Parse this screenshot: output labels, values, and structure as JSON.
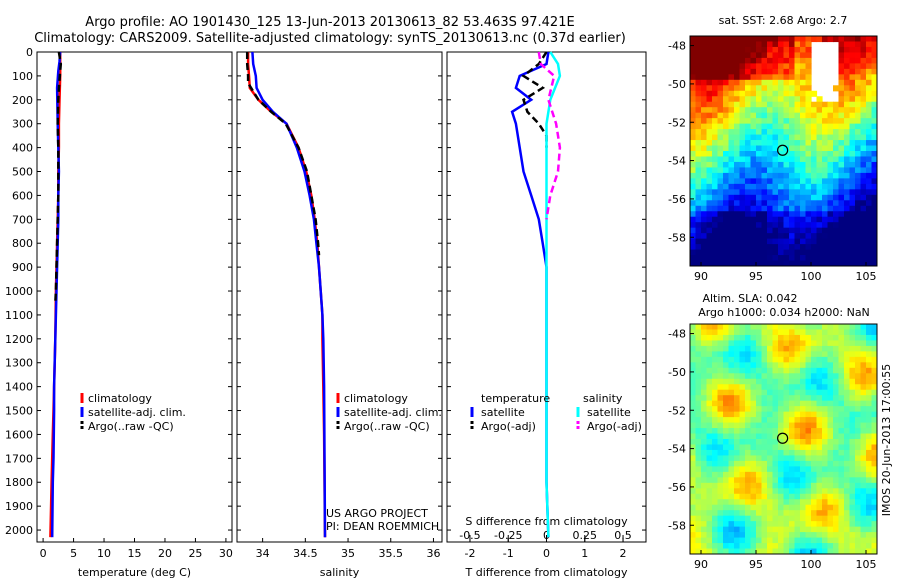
{
  "title": {
    "line1": "Argo profile: AO 1901430_125 13-Jun-2013 20130613_82 53.463S 97.421E",
    "line2": "Climatology: CARS2009. Satellite-adjusted climatology: synTS_20130613.nc (0.37d earlier)"
  },
  "credits": {
    "project": "US ARGO PROJECT",
    "pi": "PI: DEAN ROEMMICH",
    "watermark": "IMOS 20-Jun-2013 17:00:55"
  },
  "colors": {
    "climatology": "#ff0000",
    "satellite": "#0000ff",
    "argo": "#000000",
    "salinity_satellite": "#00ffff",
    "salinity_argo": "#ff00ff"
  },
  "chart_data": [
    {
      "type": "line",
      "id": "temperature",
      "xlabel": "temperature (deg C)",
      "xlim": [
        -1,
        31
      ],
      "xticks": [
        0,
        5,
        10,
        15,
        20,
        25,
        30
      ],
      "ylim": [
        2050,
        0
      ],
      "yticks": [
        0,
        100,
        200,
        300,
        400,
        500,
        600,
        700,
        800,
        900,
        1000,
        1100,
        1200,
        1300,
        1400,
        1500,
        1600,
        1700,
        1800,
        1900,
        2000
      ],
      "legend": [
        "climatology",
        "satellite-adj. clim.",
        "Argo(..raw -QC)"
      ],
      "series": [
        {
          "name": "climatology",
          "color": "#ff0000",
          "dash": false,
          "x": [
            2.8,
            2.8,
            2.8,
            2.7,
            2.6,
            2.6,
            2.5,
            2.5,
            2.4,
            2.3,
            2.2,
            2.1,
            2.0,
            1.9,
            1.8,
            1.7,
            1.6,
            1.5,
            1.4,
            1.2
          ],
          "y": [
            0,
            50,
            100,
            200,
            300,
            400,
            500,
            600,
            700,
            800,
            900,
            1000,
            1200,
            1300,
            1400,
            1500,
            1600,
            1700,
            1800,
            2030
          ]
        },
        {
          "name": "satellite-adj. clim.",
          "color": "#0000ff",
          "dash": false,
          "x": [
            2.8,
            2.7,
            2.5,
            2.3,
            2.4,
            2.5,
            2.6,
            2.5,
            2.5,
            2.4,
            2.3,
            2.2,
            2.1,
            2.0,
            1.9,
            1.8,
            1.8,
            1.7,
            1.6,
            1.5
          ],
          "y": [
            0,
            40,
            80,
            150,
            300,
            400,
            500,
            600,
            700,
            800,
            900,
            1000,
            1100,
            1200,
            1300,
            1400,
            1500,
            1700,
            1800,
            2030
          ]
        },
        {
          "name": "Argo(..raw -QC)",
          "color": "#000000",
          "dash": true,
          "x": [
            2.6,
            2.9,
            2.8,
            2.6,
            2.5,
            2.4,
            2.5,
            2.5,
            2.5,
            2.4,
            2.3,
            2.2,
            2.1,
            2.0
          ],
          "y": [
            0,
            50,
            80,
            150,
            200,
            300,
            400,
            500,
            600,
            700,
            800,
            900,
            1000,
            1050
          ]
        }
      ]
    },
    {
      "type": "line",
      "id": "salinity",
      "xlabel": "salinity",
      "xlim": [
        33.7,
        36.1
      ],
      "xticks": [
        34,
        34.5,
        35,
        35.5,
        36
      ],
      "ylim": [
        2050,
        0
      ],
      "legend": [
        "climatology",
        "satellite-adj. clim.",
        "Argo(..raw -QC)"
      ],
      "series": [
        {
          "name": "climatology",
          "color": "#ff0000",
          "dash": false,
          "x": [
            33.83,
            33.83,
            33.84,
            33.85,
            33.95,
            34.1,
            34.28,
            34.42,
            34.51,
            34.57,
            34.61,
            34.64,
            34.66,
            34.68,
            34.7,
            34.7,
            34.71,
            34.72,
            34.73
          ],
          "y": [
            0,
            50,
            100,
            150,
            200,
            250,
            300,
            400,
            500,
            600,
            700,
            800,
            900,
            1000,
            1100,
            1200,
            1400,
            1600,
            2030
          ]
        },
        {
          "name": "satellite-adj. clim.",
          "color": "#0000ff",
          "dash": false,
          "x": [
            33.88,
            33.89,
            33.92,
            33.93,
            34.0,
            34.12,
            34.28,
            34.4,
            34.49,
            34.55,
            34.6,
            34.63,
            34.66,
            34.68,
            34.7,
            34.71,
            34.72,
            34.73
          ],
          "y": [
            0,
            50,
            100,
            150,
            200,
            250,
            300,
            400,
            500,
            600,
            700,
            800,
            900,
            1000,
            1100,
            1200,
            1400,
            2030
          ]
        },
        {
          "name": "Argo(..raw -QC)",
          "color": "#000000",
          "dash": true,
          "x": [
            33.82,
            33.82,
            33.83,
            33.83,
            33.95,
            34.1,
            34.27,
            34.42,
            34.52,
            34.57,
            34.62,
            34.65,
            34.66
          ],
          "y": [
            0,
            50,
            100,
            130,
            200,
            250,
            300,
            400,
            500,
            600,
            700,
            800,
            850
          ]
        }
      ]
    },
    {
      "type": "line",
      "id": "difference",
      "xlabel": "T difference from climatology",
      "xlabel_top": "S difference from climatology",
      "xlim": [
        -2.6,
        2.6
      ],
      "xticks": [
        -2,
        -1,
        0,
        1,
        2
      ],
      "sticks": [
        -0.5,
        -0.25,
        0,
        0.25,
        0.5
      ],
      "ylim": [
        2050,
        0
      ],
      "legend_groups": [
        "temperature",
        "salinity"
      ],
      "legend": [
        "satellite",
        "Argo(-adj)",
        "satellite",
        "Argo(-adj)"
      ],
      "series": [
        {
          "name": "temperature satellite",
          "color": "#0000ff",
          "dash": false,
          "x": [
            0.05,
            0.0,
            -0.7,
            -0.8,
            -0.4,
            -0.9,
            -0.8,
            -0.7,
            -0.6,
            -0.4,
            -0.2,
            -0.1,
            0.0,
            0.0,
            0.0,
            0.0,
            0.05
          ],
          "y": [
            0,
            50,
            100,
            150,
            200,
            250,
            300,
            400,
            500,
            600,
            700,
            800,
            900,
            1200,
            1500,
            1800,
            2030
          ]
        },
        {
          "name": "temperature Argo(-adj)",
          "color": "#000000",
          "dash": true,
          "x": [
            0.0,
            -0.2,
            -0.6,
            -0.1,
            -0.6,
            -0.5,
            -0.2,
            0.0,
            0.0
          ],
          "y": [
            0,
            50,
            100,
            150,
            200,
            250,
            300,
            350,
            400
          ]
        },
        {
          "name": "salinity satellite",
          "color": "#00ffff",
          "dash": false,
          "x": [
            0.1,
            0.3,
            0.35,
            0.1,
            0.0,
            0.0,
            0.0,
            0.0,
            0.0,
            0.0,
            0.05
          ],
          "y": [
            0,
            50,
            100,
            200,
            300,
            500,
            800,
            1000,
            1400,
            1800,
            2030
          ]
        },
        {
          "name": "salinity Argo(-adj)",
          "color": "#ff00ff",
          "dash": true,
          "x": [
            -0.2,
            -0.15,
            0.2,
            0.05,
            0.25,
            0.35,
            0.3,
            0.1,
            0.0
          ],
          "y": [
            0,
            50,
            100,
            200,
            300,
            400,
            500,
            600,
            700
          ]
        }
      ]
    },
    {
      "type": "heatmap",
      "id": "sst_map",
      "title": "sat. SST: 2.68 Argo: 2.7",
      "xticks": [
        90,
        95,
        100,
        105
      ],
      "yticks": [
        -48,
        -50,
        -52,
        -54,
        -56,
        -58
      ],
      "xlim": [
        89,
        106
      ],
      "ylim": [
        -59.5,
        -47.5
      ],
      "marker": {
        "lon": 97.42,
        "lat": -53.46
      }
    },
    {
      "type": "heatmap",
      "id": "sla_map",
      "title_line1": "Altim. SLA: 0.042",
      "title_line2": "Argo h1000: 0.034 h2000: NaN",
      "xticks": [
        90,
        95,
        100,
        105
      ],
      "yticks": [
        -48,
        -50,
        -52,
        -54,
        -56,
        -58
      ],
      "xlim": [
        89,
        106
      ],
      "ylim": [
        -59.5,
        -47.5
      ],
      "marker": {
        "lon": 97.42,
        "lat": -53.46
      }
    }
  ]
}
